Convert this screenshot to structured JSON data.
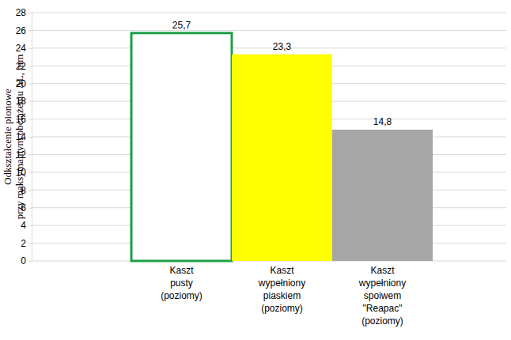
{
  "chart_data": {
    "type": "bar",
    "y_label": "Odkształcenie pionowe\nprzy maksymalnym obciążeniu ΔL, mm",
    "categories": [
      "Kaszt\npusty\n(poziomy)",
      "Kaszt\nwypełniony\npiaskiem\n(poziomy)",
      "Kaszt\nwypełniony\nspoiwem\n\"Reapac\"\n(poziomy)"
    ],
    "values": [
      25.7,
      23.3,
      14.8
    ],
    "value_labels": [
      "25,7",
      "23,3",
      "14,8"
    ],
    "colors": [
      "#ffffff",
      "#ffff00",
      "#a6a6a6"
    ],
    "ylim": [
      0,
      28
    ],
    "yticks": [
      0,
      2,
      4,
      6,
      8,
      10,
      12,
      14,
      16,
      18,
      20,
      22,
      24,
      26,
      28
    ],
    "grid": true,
    "data_labels": true
  }
}
